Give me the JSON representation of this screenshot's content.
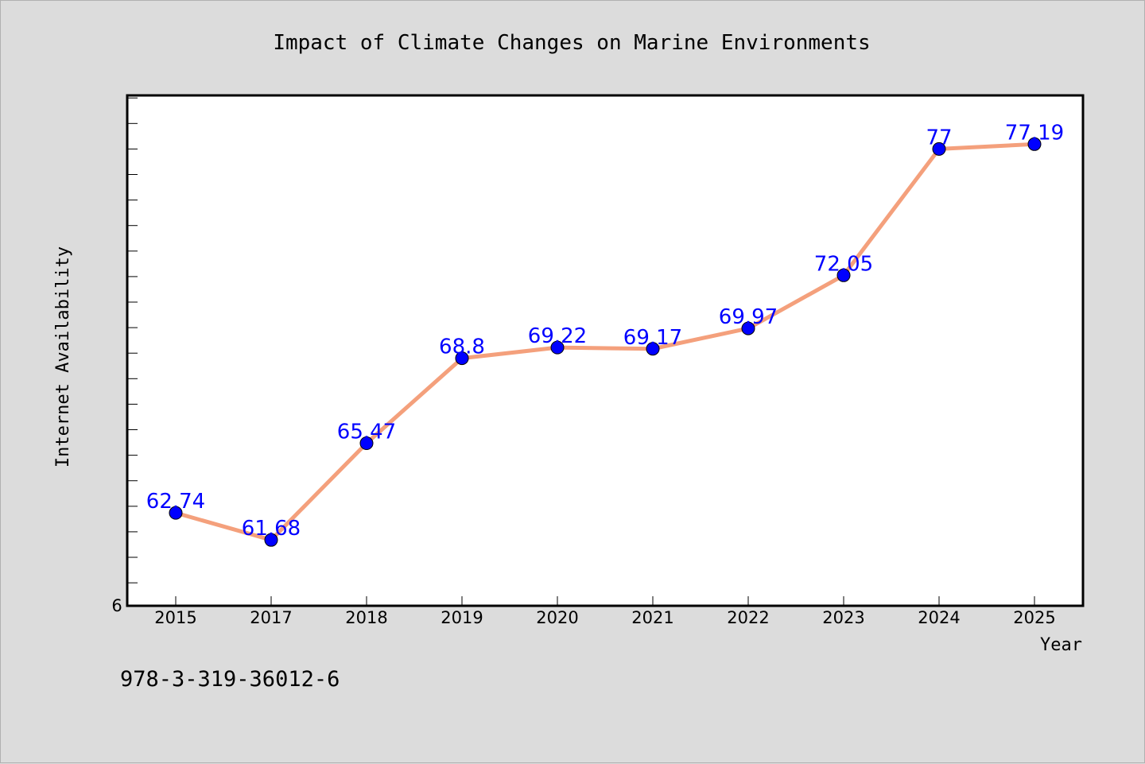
{
  "chart_data": {
    "type": "line",
    "title": "Impact of Climate Changes on Marine Environments",
    "xlabel": "Year",
    "ylabel": "Internet Availability",
    "categories": [
      "2015",
      "2017",
      "2018",
      "2019",
      "2020",
      "2021",
      "2022",
      "2023",
      "2024",
      "2025"
    ],
    "series": [
      {
        "values": [
          62.74,
          61.68,
          65.47,
          68.8,
          69.22,
          69.17,
          69.97,
          72.05,
          77,
          77.19
        ]
      }
    ],
    "data_labels": [
      "62.74",
      "61.68",
      "65.47",
      "68.8",
      "69.22",
      "69.17",
      "69.97",
      "72.05",
      "77",
      "77.19"
    ],
    "y_tick_labels": [
      "6"
    ],
    "ylim": [
      59.1,
      79.1
    ],
    "y_minor_tick_step": 1,
    "grid": false,
    "line_color": "#f4a07c",
    "marker_color": "#0000ff",
    "label_color": "#0000ff",
    "plot_background": "#ffffff",
    "page_background": "#dcdcdc"
  },
  "footer": {
    "identifier": "978-3-319-36012-6"
  }
}
